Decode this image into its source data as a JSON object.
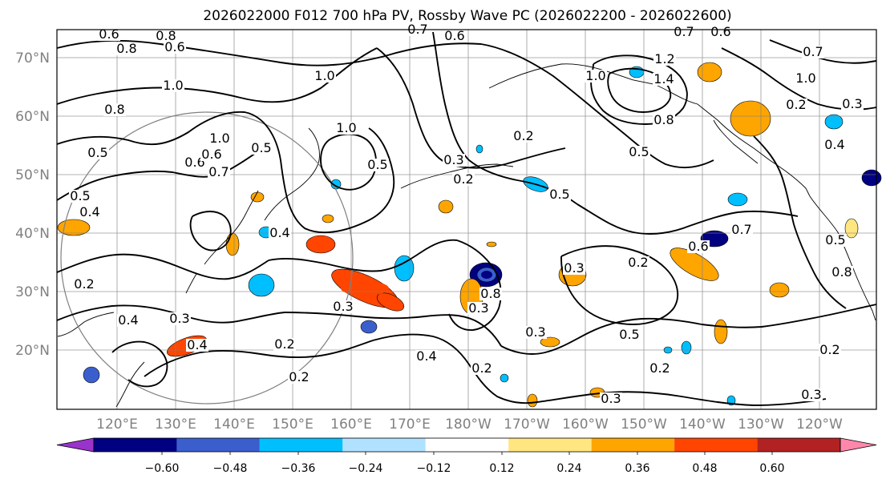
{
  "figure": {
    "title": "2026022000 F012 700 hPa PV, Rossby Wave PC (2026022200 - 2026022600)"
  },
  "map": {
    "lat_labels": [
      "70°N",
      "60°N",
      "50°N",
      "40°N",
      "30°N",
      "20°N"
    ],
    "lon_labels": [
      "120°E",
      "130°E",
      "140°E",
      "150°E",
      "160°E",
      "170°E",
      "180°W",
      "170°W",
      "160°W",
      "150°W",
      "140°W",
      "130°W",
      "120°W"
    ],
    "contour_labels": [
      "0.6",
      "0.8",
      "1.0",
      "0.8",
      "0.5",
      "0.4",
      "0.5",
      "0.2",
      "0.4",
      "0.3",
      "0.4",
      "0.6",
      "1.0",
      "0.5",
      "0.7",
      "0.6",
      "1.0",
      "1.0",
      "0.5",
      "0.3",
      "0.2",
      "0.3",
      "0.2",
      "0.8",
      "0.2",
      "0.4",
      "0.3",
      "0.2",
      "0.3",
      "0.2",
      "0.5",
      "0.6",
      "0.7",
      "1.2",
      "1.4",
      "1.0",
      "0.8",
      "0.5",
      "0.3",
      "0.2",
      "0.2",
      "0.3",
      "0.5",
      "0.4",
      "0.7",
      "0.6",
      "0.8",
      "0.6",
      "0.7",
      "1.0",
      "0.2",
      "0.3",
      "0.4",
      "0.5",
      "0.7",
      "0.6",
      "0.8",
      "0.3",
      "0.2"
    ],
    "colors": {
      "contour": "#000000",
      "grid": "#808080",
      "coast": "#000000"
    }
  },
  "colorbar": {
    "tick_labels": [
      "−0.60",
      "−0.48",
      "−0.36",
      "−0.24",
      "−0.12",
      "0.12",
      "0.24",
      "0.36",
      "0.48",
      "0.60"
    ],
    "bin_colors": [
      "#9933cc",
      "#000080",
      "#3a5fcd",
      "#00bfff",
      "#b0e2ff",
      "#ffffff",
      "#ffe680",
      "#ffa500",
      "#ff4500",
      "#b22222",
      "#ff88aa"
    ]
  }
}
